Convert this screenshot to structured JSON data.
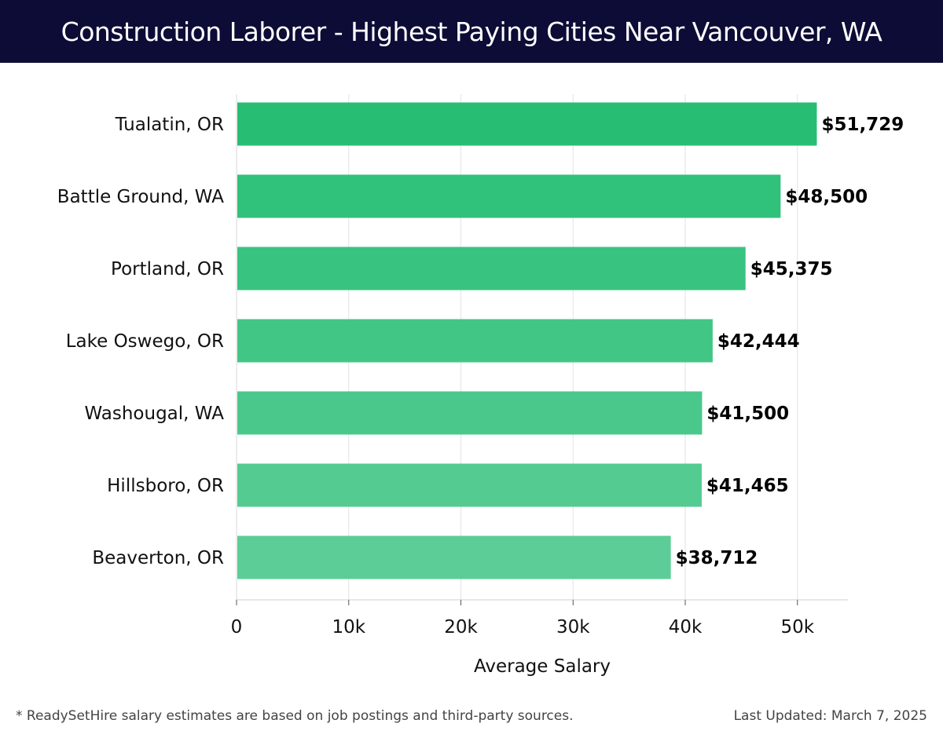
{
  "header": {
    "title": "Construction Laborer - Highest Paying Cities Near Vancouver, WA"
  },
  "chart_data": {
    "type": "bar",
    "orientation": "horizontal",
    "categories": [
      "Tualatin, OR",
      "Battle Ground, WA",
      "Portland, OR",
      "Lake Oswego, OR",
      "Washougal, WA",
      "Hillsboro, OR",
      "Beaverton, OR"
    ],
    "values": [
      51729,
      48500,
      45375,
      42444,
      41500,
      41465,
      38712
    ],
    "data_labels": [
      "$51,729",
      "$48,500",
      "$45,375",
      "$42,444",
      "$41,500",
      "$41,465",
      "$38,712"
    ],
    "xlabel": "Average Salary",
    "ylabel": "",
    "xlim": [
      0,
      54500
    ],
    "x_ticks": [
      0,
      10000,
      20000,
      30000,
      40000,
      50000
    ],
    "x_tick_labels": [
      "0",
      "10k",
      "20k",
      "30k",
      "40k",
      "50k"
    ],
    "grid": true,
    "bar_color_top": "#27be74",
    "bar_color_bottom": "#5ccd97"
  },
  "footer": {
    "note": "* ReadySetHire salary estimates are based on job postings and third-party sources.",
    "updated": "Last Updated: March 7, 2025"
  }
}
